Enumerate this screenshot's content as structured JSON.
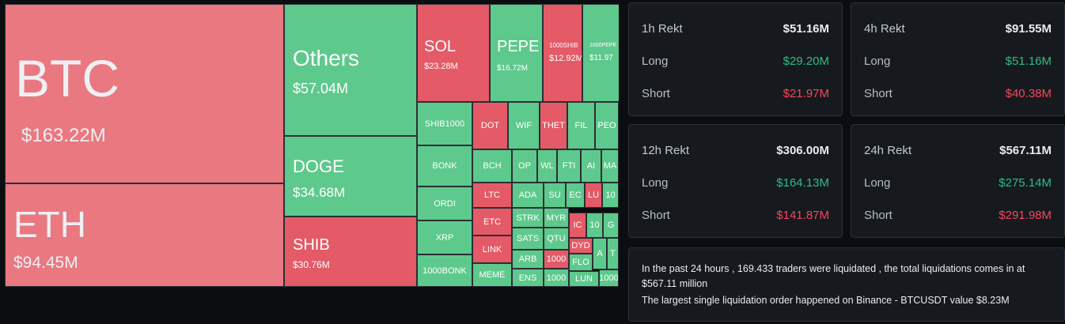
{
  "colors": {
    "liq_long_red": "#e45a67",
    "liq_short_green": "#5ec98c",
    "big_red": "#e97880",
    "green_text": "#2ebd85",
    "red_text": "#f6465d"
  },
  "treemap": {
    "btc": {
      "symbol": "BTC",
      "value": "$163.22M"
    },
    "eth": {
      "symbol": "ETH",
      "value": "$94.45M"
    },
    "others": {
      "symbol": "Others",
      "value": "$57.04M"
    },
    "doge": {
      "symbol": "DOGE",
      "value": "$34.68M"
    },
    "shib": {
      "symbol": "SHIB",
      "value": "$30.76M"
    },
    "sol": {
      "symbol": "SOL",
      "value": "$23.28M"
    },
    "pepe": {
      "symbol": "PEPE",
      "value": "$16.72M"
    },
    "shib1000": {
      "symbol": "1000SHIB",
      "value": "$12.92M"
    },
    "pepe1000": {
      "symbol": "1000PEPE",
      "value": "$11.97"
    },
    "small": [
      "SHIB1000",
      "DOT",
      "WIF",
      "THET",
      "FIL",
      "PEO",
      "BONK",
      "BCH",
      "OP",
      "WL",
      "FTI",
      "AI",
      "MA",
      "ORDI",
      "LTC",
      "ADA",
      "SU",
      "EC",
      "LU",
      "10",
      "XRP",
      "ETC",
      "STRK",
      "MYR",
      "IC",
      "10",
      "G",
      "1000BONK",
      "LINK",
      "SATS",
      "QTU",
      "DYD",
      "A",
      "T",
      "MEME",
      "ARB",
      "1000",
      "FLO",
      "ENS",
      "1000",
      "LUN",
      "1000"
    ]
  },
  "panels": [
    {
      "title": "1h Rekt",
      "total": "$51.16M",
      "long_label": "Long",
      "long": "$29.20M",
      "short_label": "Short",
      "short": "$21.97M"
    },
    {
      "title": "4h Rekt",
      "total": "$91.55M",
      "long_label": "Long",
      "long": "$51.16M",
      "short_label": "Short",
      "short": "$40.38M"
    },
    {
      "title": "12h Rekt",
      "total": "$306.00M",
      "long_label": "Long",
      "long": "$164.13M",
      "short_label": "Short",
      "short": "$141.87M"
    },
    {
      "title": "24h Rekt",
      "total": "$567.11M",
      "long_label": "Long",
      "long": "$275.14M",
      "short_label": "Short",
      "short": "$291.98M"
    }
  ],
  "summary": {
    "line1": "In the past 24 hours , 169.433 traders were liquidated , the total liquidations comes in at $567.11 million",
    "line2": "The largest single liquidation order happened on Binance - BTCUSDT value $8.23M"
  }
}
